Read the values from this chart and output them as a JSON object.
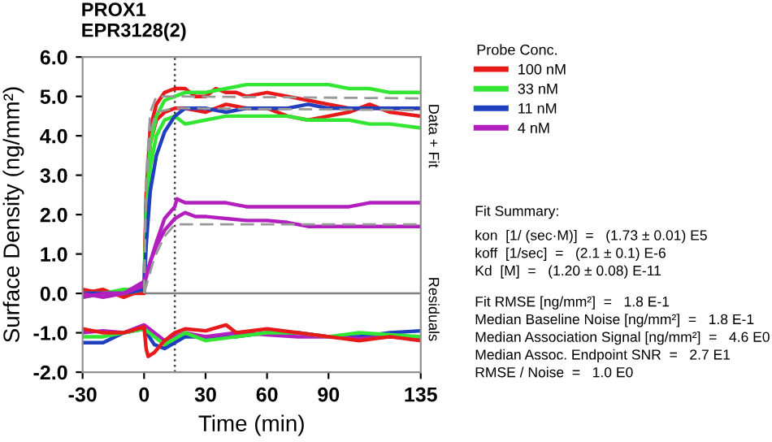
{
  "chart_data": {
    "type": "line",
    "title": "PROX1\nEPR3128(2)",
    "xlabel": "Time (min)",
    "ylabel": "Surface Density (ng/mm²)",
    "legend_title": "Probe Conc.",
    "legend": "right",
    "xlim": [
      -30,
      135
    ],
    "xticks": [
      -30,
      0,
      30,
      60,
      90,
      135
    ],
    "ylim": [
      -2,
      6
    ],
    "yticks": [
      {
        "value": -2,
        "label": "-2.0"
      },
      {
        "value": -1,
        "label": "-1.0"
      },
      {
        "value": 0,
        "label": "0.0"
      },
      {
        "value": 1,
        "label": "1.0"
      },
      {
        "value": 2,
        "label": "2.0"
      },
      {
        "value": 3,
        "label": "3.0"
      },
      {
        "value": 4,
        "label": "4.0"
      },
      {
        "value": 5,
        "label": "5.0"
      },
      {
        "value": 6,
        "label": "6.0"
      }
    ],
    "grid": false,
    "line_style": "solid",
    "marker": "none",
    "ref_lines": [
      {
        "axis": "y",
        "value": 0,
        "color": "#808080",
        "line_style": "solid"
      },
      {
        "axis": "x",
        "value": 15,
        "color": "#404040",
        "line_style": "dotted"
      }
    ],
    "series": [
      {
        "name": "100 nM",
        "color": "#e8191a",
        "x": [
          -30,
          -20,
          -10,
          0,
          1,
          3,
          6,
          10,
          15,
          20,
          25,
          30,
          35,
          40,
          45,
          50,
          60,
          70,
          80,
          90,
          100,
          110,
          120,
          135
        ],
        "values": [
          0.1,
          0.0,
          0.0,
          0.0,
          2.5,
          4.2,
          4.8,
          5.1,
          5.2,
          5.2,
          5.0,
          5.0,
          5.2,
          5.1,
          5.1,
          5.0,
          5.1,
          5.0,
          4.9,
          4.8,
          4.7,
          4.7,
          4.7,
          4.7
        ]
      },
      {
        "color": "#e8191a",
        "x": [
          -30,
          -20,
          -10,
          0,
          1,
          3,
          6,
          10,
          15,
          20,
          30,
          40,
          50,
          60,
          70,
          80,
          90,
          100,
          110,
          120,
          135
        ],
        "values": [
          0.0,
          0.1,
          -0.1,
          0.1,
          2.2,
          3.8,
          4.4,
          4.6,
          4.7,
          4.7,
          4.6,
          4.8,
          4.7,
          4.7,
          4.5,
          4.4,
          4.5,
          4.6,
          4.8,
          4.6,
          4.5
        ]
      },
      {
        "name": "33 nM",
        "color": "#33e633",
        "x": [
          -30,
          -20,
          -10,
          0,
          1,
          3,
          6,
          10,
          15,
          20,
          30,
          40,
          50,
          60,
          70,
          80,
          90,
          100,
          110,
          120,
          135
        ],
        "values": [
          0.0,
          0.0,
          0.1,
          0.1,
          2.0,
          3.8,
          4.5,
          4.9,
          5.0,
          5.1,
          5.1,
          5.2,
          5.3,
          5.3,
          5.3,
          5.3,
          5.3,
          5.2,
          5.2,
          5.1,
          5.1
        ]
      },
      {
        "color": "#33e633",
        "x": [
          -30,
          -20,
          -10,
          0,
          1,
          3,
          6,
          10,
          15,
          20,
          30,
          40,
          50,
          60,
          70,
          80,
          90,
          100,
          110,
          120,
          135
        ],
        "values": [
          -0.1,
          0.0,
          0.0,
          0.1,
          1.6,
          3.2,
          4.0,
          4.4,
          4.5,
          4.3,
          4.4,
          4.5,
          4.5,
          4.5,
          4.5,
          4.4,
          4.4,
          4.4,
          4.3,
          4.3,
          4.2
        ]
      },
      {
        "name": "11 nM",
        "color": "#1f3fbf",
        "x": [
          -30,
          -20,
          -10,
          0,
          1,
          3,
          6,
          10,
          15,
          20,
          30,
          40,
          50,
          60,
          70,
          80,
          90,
          100,
          110,
          120,
          135
        ],
        "values": [
          0.0,
          0.0,
          0.0,
          0.1,
          1.2,
          2.6,
          3.5,
          4.1,
          4.5,
          4.7,
          4.7,
          4.6,
          4.7,
          4.7,
          4.7,
          4.8,
          4.7,
          4.7,
          4.7,
          4.7,
          4.7
        ]
      },
      {
        "name": "4 nM",
        "color": "#b31fbf",
        "x": [
          -30,
          -20,
          -10,
          0,
          3,
          6,
          10,
          15,
          16,
          20,
          30,
          40,
          50,
          60,
          70,
          80,
          90,
          100,
          110,
          120,
          135
        ],
        "values": [
          0.0,
          -0.1,
          0.0,
          0.2,
          0.8,
          1.3,
          1.9,
          2.2,
          2.4,
          2.3,
          2.3,
          2.3,
          2.2,
          2.2,
          2.2,
          2.2,
          2.2,
          2.2,
          2.3,
          2.3,
          2.3
        ]
      },
      {
        "color": "#b31fbf",
        "x": [
          -30,
          -20,
          -10,
          0,
          3,
          6,
          10,
          15,
          20,
          25,
          30,
          40,
          50,
          60,
          70,
          80,
          90,
          100,
          110,
          120,
          135
        ],
        "values": [
          -0.1,
          0.0,
          0.0,
          0.3,
          0.8,
          1.2,
          1.6,
          1.9,
          2.05,
          1.95,
          1.95,
          1.9,
          1.85,
          1.85,
          1.8,
          1.7,
          1.7,
          1.7,
          1.7,
          1.7,
          1.7
        ]
      },
      {
        "color": "#999999",
        "line_style": "dashed",
        "x": [
          0,
          1,
          3,
          6,
          15,
          135
        ],
        "values": [
          0.0,
          3.0,
          4.6,
          5.0,
          5.0,
          4.95
        ]
      },
      {
        "color": "#999999",
        "line_style": "dashed",
        "x": [
          0,
          1,
          3,
          6,
          15,
          135
        ],
        "values": [
          0.0,
          2.6,
          4.1,
          4.6,
          4.7,
          4.65
        ]
      },
      {
        "color": "#999999",
        "line_style": "dashed",
        "x": [
          0,
          5,
          10,
          15,
          135
        ],
        "values": [
          0.0,
          0.9,
          1.45,
          1.75,
          1.75
        ]
      },
      {
        "color": "#1f3fbf",
        "x": [
          -30,
          -20,
          -10,
          0,
          5,
          10,
          20,
          30,
          45,
          60,
          75,
          90,
          105,
          120,
          135
        ],
        "values": [
          -1.25,
          -1.25,
          -1.0,
          -0.9,
          -1.3,
          -1.4,
          -1.1,
          -1.1,
          -1.1,
          -1.0,
          -1.0,
          -1.1,
          -1.1,
          -1.0,
          -0.95
        ]
      },
      {
        "color": "#b31fbf",
        "x": [
          -30,
          -20,
          -10,
          0,
          5,
          10,
          20,
          30,
          45,
          60,
          75,
          90,
          105,
          120,
          135
        ],
        "values": [
          -1.0,
          -0.95,
          -1.0,
          -0.8,
          -1.0,
          -1.2,
          -1.0,
          -1.1,
          -1.0,
          -1.05,
          -1.1,
          -1.1,
          -1.15,
          -1.1,
          -1.15
        ]
      },
      {
        "color": "#33e633",
        "x": [
          -30,
          -20,
          -10,
          0,
          5,
          10,
          20,
          30,
          45,
          60,
          75,
          90,
          105,
          120,
          135
        ],
        "values": [
          -1.1,
          -1.1,
          -1.0,
          -0.9,
          -1.1,
          -1.3,
          -1.0,
          -1.2,
          -1.1,
          -1.0,
          -1.0,
          -1.1,
          -1.0,
          -1.05,
          -1.1
        ]
      },
      {
        "color": "#e8191a",
        "x": [
          -30,
          -20,
          -10,
          0,
          1,
          2,
          5,
          10,
          15,
          20,
          30,
          40,
          45,
          60,
          75,
          90,
          105,
          120,
          135
        ],
        "values": [
          -0.9,
          -1.0,
          -1.0,
          -0.85,
          -1.4,
          -1.6,
          -1.5,
          -1.2,
          -1.0,
          -0.9,
          -0.95,
          -0.8,
          -1.0,
          -0.9,
          -1.0,
          -1.1,
          -1.2,
          -1.1,
          -1.2
        ]
      }
    ],
    "annotations": [
      "Data + Fit",
      "Residuals",
      "Fit Summary:",
      "kon  [1/ (sec·M)]  =   (1.73 ± 0.01) E5",
      "koff  [1/sec]  =   (2.1 ± 0.1) E-6",
      "Kd  [M]  =   (1.20 ± 0.08) E-11",
      "Fit RMSE [ng/mm²]  =   1.8 E-1",
      "Median Baseline Noise [ng/mm²]  =   1.8 E-1",
      "Median Association Signal [ng/mm²]  =   4.6 E0",
      "Median Assoc. Endpoint SNR  =   2.7 E1",
      "RMSE / Noise  =   1.0 E0"
    ]
  }
}
